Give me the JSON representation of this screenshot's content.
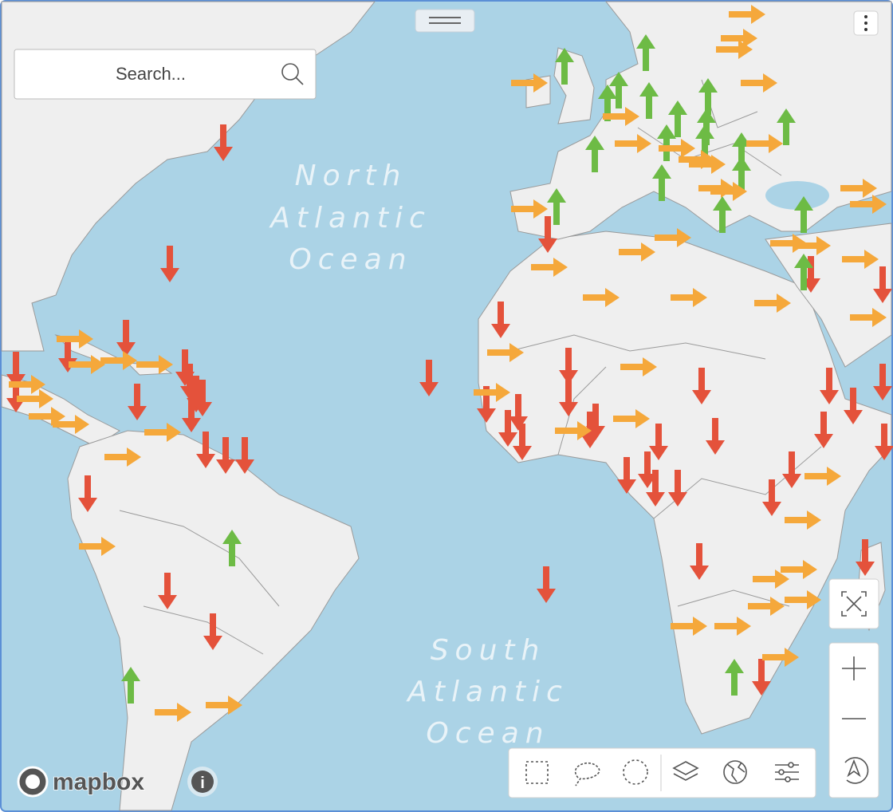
{
  "search": {
    "placeholder": "Search..."
  },
  "labels": {
    "north_atlantic": [
      "North",
      "Atlantic",
      "Ocean"
    ],
    "south_atlantic": [
      "South",
      "Atlantic",
      "Ocean"
    ]
  },
  "attribution": {
    "logo": "mapbox",
    "info": "i"
  }
}
